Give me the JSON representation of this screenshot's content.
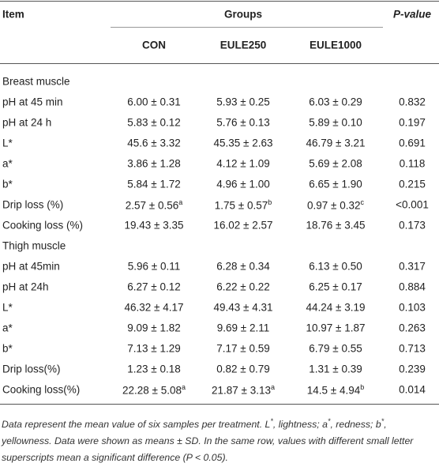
{
  "header": {
    "item": "Item",
    "groups": "Groups",
    "p_value": "P-value",
    "columns": [
      "CON",
      "EULE250",
      "EULE1000"
    ]
  },
  "sections": [
    {
      "title": "Breast muscle",
      "rows": [
        {
          "item": "pH at 45 min",
          "values": [
            "6.00 ± 0.31",
            "5.93 ± 0.25",
            "6.03 ± 0.29"
          ],
          "p": "0.832"
        },
        {
          "item": "pH at 24 h",
          "values": [
            "5.83 ± 0.12",
            "5.76 ± 0.13",
            "5.89 ± 0.10"
          ],
          "p": "0.197"
        },
        {
          "item": "L*",
          "values": [
            "45.6 ± 3.32",
            "45.35 ± 2.63",
            "46.79 ± 3.21"
          ],
          "p": "0.691"
        },
        {
          "item": "a*",
          "values": [
            "3.86 ± 1.28",
            "4.12 ± 1.09",
            "5.69 ± 2.08"
          ],
          "p": "0.118"
        },
        {
          "item": "b*",
          "values": [
            "5.84 ± 1.72",
            "4.96 ± 1.00",
            "6.65 ± 1.90"
          ],
          "p": "0.215"
        },
        {
          "item": "Drip loss (%)",
          "values": [
            {
              "text": "2.57 ± 0.56",
              "sup": "a"
            },
            {
              "text": "1.75 ± 0.57",
              "sup": "b"
            },
            {
              "text": "0.97 ± 0.32",
              "sup": "c"
            }
          ],
          "p": "<0.001"
        },
        {
          "item": "Cooking loss (%)",
          "values": [
            "19.43 ± 3.35",
            "16.02 ± 2.57",
            "18.76 ± 3.45"
          ],
          "p": "0.173"
        }
      ]
    },
    {
      "title": "Thigh muscle",
      "rows": [
        {
          "item": "pH at 45min",
          "values": [
            "5.96 ± 0.11",
            "6.28 ± 0.34",
            "6.13 ± 0.50"
          ],
          "p": "0.317"
        },
        {
          "item": "pH at 24h",
          "values": [
            "6.27 ± 0.12",
            "6.22 ± 0.22",
            "6.25 ± 0.17"
          ],
          "p": "0.884"
        },
        {
          "item": "L*",
          "values": [
            "46.32 ± 4.17",
            "49.43 ± 4.31",
            "44.24 ± 3.19"
          ],
          "p": "0.103"
        },
        {
          "item": "a*",
          "values": [
            "9.09 ± 1.82",
            "9.69 ± 2.11",
            "10.97 ± 1.87"
          ],
          "p": "0.263"
        },
        {
          "item": "b*",
          "values": [
            "7.13 ± 1.29",
            "7.17 ± 0.59",
            "6.79 ± 0.55"
          ],
          "p": "0.713"
        },
        {
          "item": "Drip loss(%)",
          "values": [
            "1.23 ± 0.18",
            "0.82 ± 0.79",
            "1.31 ± 0.39"
          ],
          "p": "0.239"
        },
        {
          "item": "Cooking loss(%)",
          "values": [
            {
              "text": "22.28 ± 5.08",
              "sup": "a"
            },
            {
              "text": "21.87 ± 3.13",
              "sup": "a"
            },
            {
              "text": "14.5 ± 4.94",
              "sup": "b"
            }
          ],
          "p": "0.014"
        }
      ]
    }
  ],
  "footnote": [
    {
      "text": "Data represent the mean value of six samples per treatment. L"
    },
    {
      "sup": "*"
    },
    {
      "text": ", lightness; a"
    },
    {
      "sup": "*"
    },
    {
      "text": ", redness; b"
    },
    {
      "sup": "*"
    },
    {
      "text": ", yellowness. Data were shown as means ± SD. In the same row, values with different small letter superscripts mean a significant difference (P < 0.05)."
    }
  ]
}
